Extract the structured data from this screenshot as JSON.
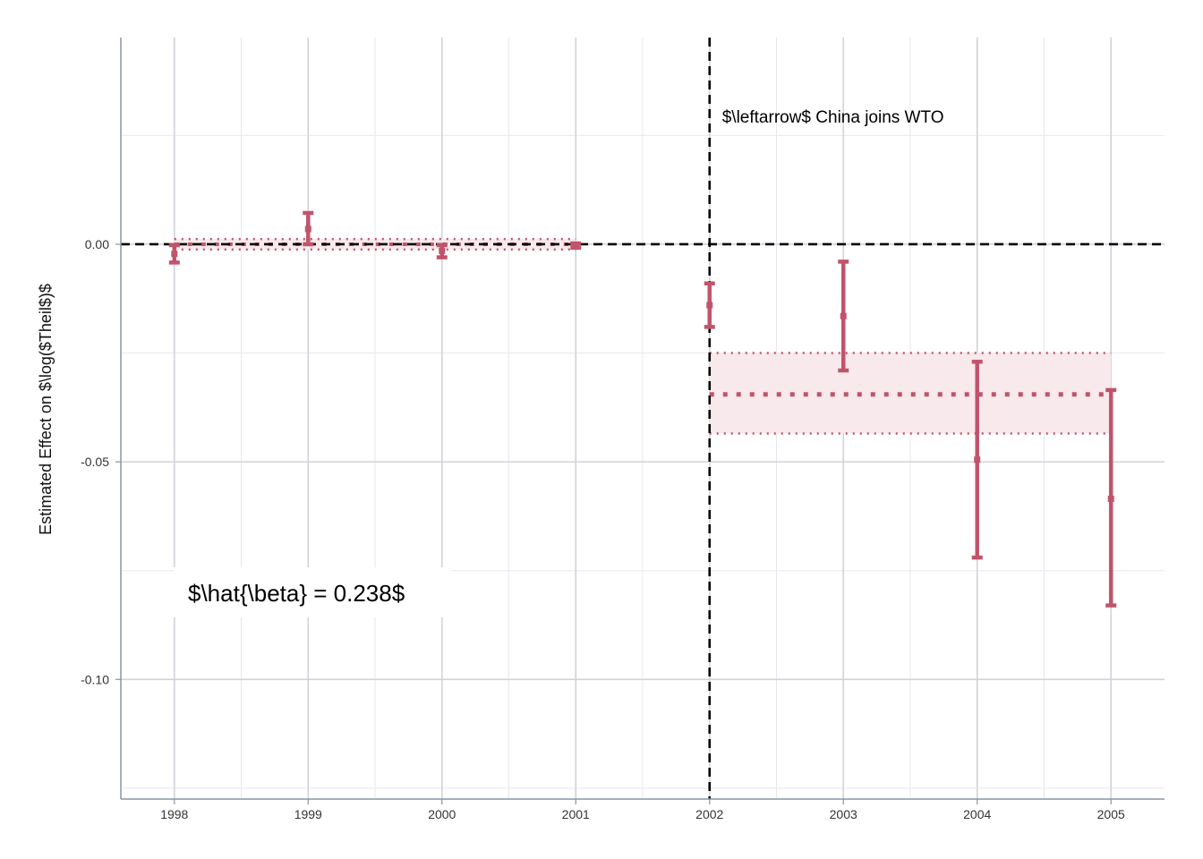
{
  "chart_data": {
    "type": "errorbar",
    "x": [
      1998,
      1999,
      2000,
      2001,
      2002,
      2003,
      2004,
      2005
    ],
    "estimates": [
      -0.0022,
      0.0035,
      -0.0015,
      -0.0003,
      -0.014,
      -0.0165,
      -0.0495,
      -0.0585
    ],
    "ci_low": [
      -0.0042,
      0.0,
      -0.003,
      -0.0008,
      -0.019,
      -0.029,
      -0.072,
      -0.083
    ],
    "ci_high": [
      -0.0002,
      0.0072,
      -0.0002,
      0.0002,
      -0.009,
      -0.004,
      -0.027,
      -0.0335
    ],
    "xlim": [
      1997.6,
      2005.4
    ],
    "ylim": [
      -0.1275,
      0.0475
    ],
    "yticks": [
      0.0,
      -0.05,
      -0.1
    ],
    "ytick_labels": [
      "0.00",
      "-0.05",
      "-0.10"
    ],
    "xtick_labels": [
      "1998",
      "1999",
      "2000",
      "2001",
      "2002",
      "2003",
      "2004",
      "2005"
    ],
    "ylabel": "Estimated Effect on $\\log($Theil$)$",
    "xlabel": "",
    "grid": true,
    "reference_lines": {
      "horizontal_y": 0,
      "vertical_x": 2002,
      "style": "dashed"
    },
    "pre_period_band": {
      "x": [
        1998,
        2001
      ],
      "mean": 0.0,
      "low": -0.0012,
      "high": 0.0012
    },
    "post_period_band": {
      "x": [
        2002,
        2005
      ],
      "mean": -0.0345,
      "low": -0.0435,
      "high": -0.025
    },
    "annotations": {
      "wto": "$\\leftarrow$ China joins WTO",
      "beta": "$\\hat{\\beta} = 0.238$"
    },
    "colors": {
      "series": "#c0546b",
      "band_fill": "#f7e9ec",
      "reference": "#000000",
      "grid_major": "#d2d2da",
      "grid_minor": "#e8e8ee"
    }
  }
}
